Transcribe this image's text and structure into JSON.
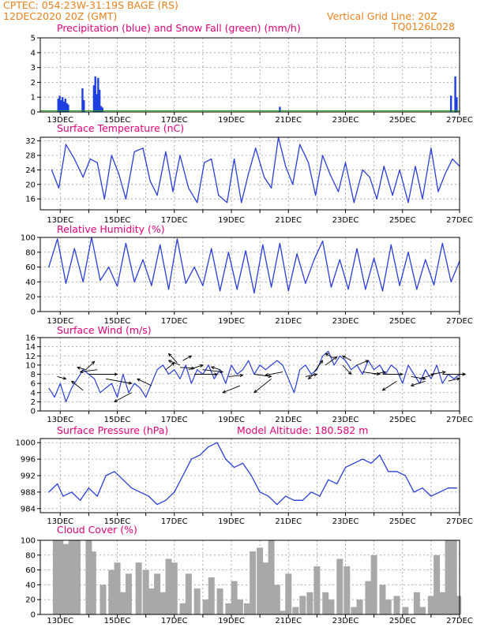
{
  "header": {
    "station": "CPTEC:   054:23W-31:19S   BAGE (RS)",
    "run": "12DEC2020  20Z  (GMT)",
    "grid_note": "Vertical Grid Line: 20Z",
    "code": "TQ0126L028"
  },
  "colors": {
    "header": "#e8821e",
    "title": "#e0007a",
    "line": "#2a3fd8",
    "precip": "#1f3fe0",
    "snow": "#1a9b1a",
    "cloud": "#a8a8a8",
    "wind_arrow": "#000000"
  },
  "x_labels": [
    "13DEC",
    "15DEC",
    "17DEC",
    "19DEC",
    "21DEC",
    "23DEC",
    "25DEC",
    "27DEC"
  ],
  "chart_data": [
    {
      "type": "bar",
      "title": "Precipitation (blue) and Snow Fall (green) (mm/h)",
      "ylim": [
        0,
        5
      ],
      "yticks": [
        0,
        1,
        2,
        3,
        4,
        5
      ],
      "series": [
        {
          "name": "Precipitation",
          "points": [
            [
              12.93,
              0.9
            ],
            [
              12.98,
              1.1
            ],
            [
              13.03,
              0.8
            ],
            [
              13.08,
              1.0
            ],
            [
              13.13,
              0.7
            ],
            [
              13.18,
              0.9
            ],
            [
              13.23,
              0.6
            ],
            [
              13.28,
              0.5
            ],
            [
              13.78,
              1.6
            ],
            [
              13.83,
              0.8
            ],
            [
              14.18,
              1.8
            ],
            [
              14.23,
              2.4
            ],
            [
              14.28,
              1.2
            ],
            [
              14.33,
              2.3
            ],
            [
              14.38,
              1.5
            ],
            [
              14.43,
              0.4
            ],
            [
              14.48,
              0.3
            ],
            [
              20.7,
              0.35
            ],
            [
              26.7,
              1.1
            ],
            [
              26.85,
              2.4
            ],
            [
              26.9,
              1.0
            ]
          ]
        },
        {
          "name": "Snow Fall",
          "points": []
        }
      ]
    },
    {
      "type": "line",
      "title": "Surface Temperature (nC)",
      "ylim": [
        13,
        33
      ],
      "yticks": [
        16,
        20,
        24,
        28,
        32
      ],
      "x": [
        12.7,
        12.95,
        13.2,
        13.5,
        13.8,
        14.05,
        14.3,
        14.55,
        14.8,
        15.05,
        15.3,
        15.6,
        15.9,
        16.15,
        16.4,
        16.7,
        16.95,
        17.2,
        17.5,
        17.8,
        18.05,
        18.3,
        18.55,
        18.85,
        19.1,
        19.35,
        19.6,
        19.85,
        20.15,
        20.4,
        20.65,
        20.9,
        21.15,
        21.4,
        21.7,
        21.95,
        22.2,
        22.45,
        22.75,
        23.0,
        23.3,
        23.6,
        23.85,
        24.1,
        24.35,
        24.65,
        24.9,
        25.2,
        25.45,
        25.7,
        26.0,
        26.25,
        26.5,
        26.75,
        27.0
      ],
      "values": [
        24,
        19,
        31,
        27,
        22,
        27,
        26,
        16,
        28,
        23,
        16,
        29,
        30,
        21,
        17,
        29,
        18,
        28,
        19,
        15,
        26,
        27,
        17,
        15,
        27,
        15,
        23,
        30,
        22,
        19,
        33,
        25,
        20,
        31,
        26,
        17,
        28,
        23,
        18,
        26,
        15,
        24,
        22,
        16,
        25,
        17,
        24,
        15,
        25,
        16,
        30,
        18,
        23,
        27,
        25
      ]
    },
    {
      "type": "line",
      "title": "Relative Humidity (%)",
      "ylim": [
        0,
        100
      ],
      "yticks": [
        0,
        20,
        40,
        60,
        80,
        100
      ],
      "x": [
        12.6,
        12.9,
        13.2,
        13.5,
        13.8,
        14.1,
        14.4,
        14.7,
        15.0,
        15.3,
        15.6,
        15.9,
        16.2,
        16.5,
        16.8,
        17.1,
        17.4,
        17.7,
        18.0,
        18.3,
        18.6,
        18.9,
        19.2,
        19.5,
        19.8,
        20.1,
        20.4,
        20.7,
        21.0,
        21.3,
        21.6,
        21.9,
        22.2,
        22.5,
        22.8,
        23.1,
        23.4,
        23.7,
        24.0,
        24.3,
        24.6,
        24.9,
        25.2,
        25.5,
        25.8,
        26.1,
        26.4,
        26.7,
        27.0
      ],
      "values": [
        60,
        98,
        38,
        85,
        40,
        100,
        42,
        60,
        34,
        92,
        40,
        70,
        35,
        90,
        30,
        98,
        38,
        60,
        35,
        85,
        28,
        80,
        30,
        82,
        25,
        90,
        33,
        92,
        28,
        78,
        38,
        70,
        95,
        33,
        70,
        30,
        85,
        30,
        72,
        28,
        90,
        35,
        80,
        30,
        70,
        36,
        92,
        40,
        68
      ]
    },
    {
      "type": "scatter",
      "title": "Surface Wind (m/s)",
      "ylim": [
        0,
        16
      ],
      "yticks": [
        0,
        2,
        4,
        6,
        8,
        10,
        12,
        14,
        16
      ],
      "speed_x": [
        12.6,
        12.8,
        13.0,
        13.2,
        13.4,
        13.6,
        13.8,
        14.0,
        14.2,
        14.4,
        14.6,
        14.8,
        15.0,
        15.2,
        15.4,
        15.6,
        15.8,
        16.0,
        16.2,
        16.4,
        16.6,
        16.8,
        17.0,
        17.2,
        17.4,
        17.6,
        17.8,
        18.0,
        18.2,
        18.4,
        18.6,
        18.8,
        19.0,
        19.2,
        19.4,
        19.6,
        19.8,
        20.0,
        20.2,
        20.4,
        20.6,
        20.8,
        21.0,
        21.2,
        21.4,
        21.6,
        21.8,
        22.0,
        22.2,
        22.4,
        22.6,
        22.8,
        23.0,
        23.2,
        23.4,
        23.6,
        23.8,
        24.0,
        24.2,
        24.4,
        24.6,
        24.8,
        25.0,
        25.2,
        25.4,
        25.6,
        25.8,
        26.0,
        26.2,
        26.4,
        26.6,
        26.8,
        27.0
      ],
      "speed": [
        5,
        3,
        6,
        2,
        5,
        7,
        9,
        8,
        7,
        4,
        5,
        6,
        3,
        8,
        4,
        6,
        5,
        3,
        6,
        9,
        10,
        8,
        9,
        7,
        10,
        6,
        9,
        8,
        10,
        7,
        9,
        6,
        10,
        8,
        9,
        11,
        8,
        10,
        9,
        10,
        11,
        10,
        7,
        4,
        9,
        10,
        8,
        9,
        12,
        13,
        10,
        12,
        11,
        9,
        10,
        8,
        11,
        9,
        10,
        8,
        10,
        9,
        6,
        10,
        8,
        6,
        9,
        7,
        10,
        6,
        8,
        7,
        8
      ],
      "arrows": [
        {
          "x": 12.9,
          "y": 7.5,
          "dx": 0.3,
          "dy": -0.5
        },
        {
          "x": 13.8,
          "y": 4.5,
          "dx": -0.4,
          "dy": 2.0
        },
        {
          "x": 13.9,
          "y": 9.0,
          "dx": 0.3,
          "dy": 1.8
        },
        {
          "x": 13.9,
          "y": 9.0,
          "dx": -0.3,
          "dy": 0.5
        },
        {
          "x": 14.0,
          "y": 8.0,
          "dx": 1.0,
          "dy": 0.0
        },
        {
          "x": 14.3,
          "y": 9.0,
          "dx": -0.6,
          "dy": -0.5
        },
        {
          "x": 14.6,
          "y": 7.0,
          "dx": 0.9,
          "dy": -1.0
        },
        {
          "x": 15.5,
          "y": 4.0,
          "dx": -0.6,
          "dy": -2.0
        },
        {
          "x": 16.2,
          "y": 5.5,
          "dx": -0.5,
          "dy": 1.5
        },
        {
          "x": 16.7,
          "y": 9.0,
          "dx": 0.3,
          "dy": 1.5
        },
        {
          "x": 17.1,
          "y": 10.5,
          "dx": -0.3,
          "dy": 2.0
        },
        {
          "x": 17.2,
          "y": 10.0,
          "dx": -0.4,
          "dy": 1.0
        },
        {
          "x": 17.2,
          "y": 9.5,
          "dx": 0.5,
          "dy": -0.2
        },
        {
          "x": 17.3,
          "y": 11.0,
          "dx": 0.3,
          "dy": 1.0
        },
        {
          "x": 17.5,
          "y": 9.0,
          "dx": 0.5,
          "dy": 1.0
        },
        {
          "x": 17.7,
          "y": 8.0,
          "dx": 0.8,
          "dy": 0.0
        },
        {
          "x": 18.0,
          "y": 9.0,
          "dx": 0.7,
          "dy": -0.5
        },
        {
          "x": 18.6,
          "y": 9.0,
          "dx": -0.3,
          "dy": 0.6
        },
        {
          "x": 18.9,
          "y": 7.5,
          "dx": 0.5,
          "dy": 0.3
        },
        {
          "x": 19.3,
          "y": 5.5,
          "dx": -0.6,
          "dy": -1.5
        },
        {
          "x": 19.8,
          "y": 8.0,
          "dx": 0.6,
          "dy": -0.5
        },
        {
          "x": 20.4,
          "y": 7.0,
          "dx": -0.6,
          "dy": -3.0
        },
        {
          "x": 20.8,
          "y": 8.5,
          "dx": -0.6,
          "dy": -0.7
        },
        {
          "x": 21.6,
          "y": 7.5,
          "dx": 0.4,
          "dy": 0.5
        },
        {
          "x": 21.9,
          "y": 8.5,
          "dx": 0.3,
          "dy": 2.5
        },
        {
          "x": 21.9,
          "y": 8.0,
          "dx": -0.2,
          "dy": -1.0
        },
        {
          "x": 22.3,
          "y": 10.0,
          "dx": 0.4,
          "dy": 1.8
        },
        {
          "x": 22.6,
          "y": 11.5,
          "dx": -0.3,
          "dy": 1.0
        },
        {
          "x": 22.9,
          "y": 10.0,
          "dx": 0.3,
          "dy": -2.0
        },
        {
          "x": 23.2,
          "y": 11.0,
          "dx": -0.3,
          "dy": 1.0
        },
        {
          "x": 23.4,
          "y": 10.0,
          "dx": 0.4,
          "dy": 1.0
        },
        {
          "x": 23.6,
          "y": 8.5,
          "dx": 0.6,
          "dy": -0.5
        },
        {
          "x": 24.0,
          "y": 8.0,
          "dx": 0.4,
          "dy": 0.5
        },
        {
          "x": 24.3,
          "y": 8.0,
          "dx": 0.7,
          "dy": 0.0
        },
        {
          "x": 24.8,
          "y": 6.5,
          "dx": -0.5,
          "dy": -2.0
        },
        {
          "x": 25.3,
          "y": 7.5,
          "dx": 0.5,
          "dy": -0.5
        },
        {
          "x": 25.6,
          "y": 7.0,
          "dx": 0.5,
          "dy": 1.0
        },
        {
          "x": 25.8,
          "y": 6.5,
          "dx": -0.5,
          "dy": -1.0
        },
        {
          "x": 26.0,
          "y": 8.0,
          "dx": 0.5,
          "dy": 0.5
        },
        {
          "x": 26.4,
          "y": 8.0,
          "dx": 0.8,
          "dy": 0.0
        },
        {
          "x": 26.6,
          "y": 6.5,
          "dx": 0.4,
          "dy": 0.6
        },
        {
          "x": 26.9,
          "y": 8.0,
          "dx": 0.3,
          "dy": 0.0
        }
      ]
    },
    {
      "type": "line",
      "title": "Surface Pressure (hPa)",
      "annotation": "Model Altitude: 180.582 m",
      "ylim": [
        983,
        1001
      ],
      "yticks": [
        984,
        988,
        992,
        996,
        1000
      ],
      "x": [
        12.6,
        12.9,
        13.1,
        13.4,
        13.7,
        14.0,
        14.3,
        14.6,
        14.9,
        15.2,
        15.5,
        15.8,
        16.1,
        16.4,
        16.7,
        17.0,
        17.3,
        17.6,
        17.9,
        18.2,
        18.5,
        18.8,
        19.1,
        19.4,
        19.7,
        20.0,
        20.3,
        20.6,
        20.9,
        21.2,
        21.5,
        21.8,
        22.1,
        22.4,
        22.7,
        23.0,
        23.3,
        23.6,
        23.9,
        24.2,
        24.5,
        24.8,
        25.1,
        25.4,
        25.7,
        26.0,
        26.3,
        26.6,
        26.9
      ],
      "values": [
        988,
        990,
        987,
        988,
        986,
        989,
        987,
        992,
        993,
        991,
        989,
        988,
        987,
        985,
        986,
        988,
        992,
        996,
        997,
        999,
        1000,
        996,
        994,
        995,
        992,
        988,
        987,
        985,
        987,
        986,
        986,
        988,
        987,
        991,
        990,
        994,
        995,
        996,
        995,
        997,
        993,
        993,
        992,
        988,
        989,
        987,
        988,
        989,
        989
      ]
    },
    {
      "type": "bar",
      "title": "Cloud Cover (%)",
      "ylim": [
        0,
        100
      ],
      "yticks": [
        0,
        20,
        40,
        60,
        80,
        100
      ],
      "x": [
        12.85,
        13.0,
        13.2,
        13.4,
        13.6,
        14.0,
        14.15,
        14.5,
        14.8,
        15.0,
        15.2,
        15.4,
        15.75,
        16.0,
        16.2,
        16.4,
        16.6,
        16.8,
        17.0,
        17.3,
        17.5,
        17.8,
        18.1,
        18.3,
        18.6,
        18.9,
        19.1,
        19.3,
        19.55,
        19.75,
        20.0,
        20.2,
        20.4,
        20.6,
        20.8,
        21.0,
        21.25,
        21.5,
        21.75,
        22.0,
        22.3,
        22.5,
        22.8,
        23.05,
        23.3,
        23.5,
        23.8,
        24.0,
        24.3,
        24.5,
        24.8,
        25.1,
        25.5,
        25.7,
        26.0,
        26.2,
        26.4,
        26.6,
        26.8,
        26.95
      ],
      "values": [
        100,
        100,
        95,
        100,
        100,
        100,
        85,
        40,
        60,
        70,
        30,
        55,
        70,
        60,
        35,
        55,
        30,
        75,
        70,
        15,
        55,
        35,
        20,
        50,
        35,
        15,
        45,
        20,
        15,
        85,
        90,
        70,
        100,
        40,
        5,
        55,
        10,
        25,
        30,
        65,
        30,
        20,
        75,
        65,
        10,
        20,
        45,
        80,
        40,
        20,
        25,
        10,
        30,
        10,
        25,
        80,
        30,
        100,
        100,
        25
      ]
    }
  ]
}
